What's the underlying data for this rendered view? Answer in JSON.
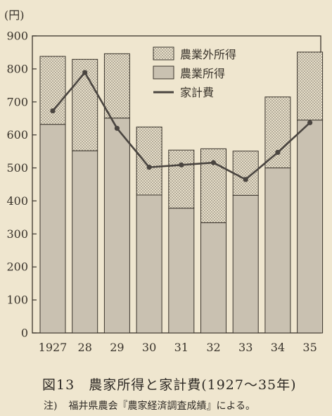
{
  "chart_data": {
    "type": "bar",
    "stacked": true,
    "unit_label": "(円)",
    "categories": [
      "1927",
      "28",
      "29",
      "30",
      "31",
      "32",
      "33",
      "34",
      "35"
    ],
    "series": [
      {
        "name": "農業所得",
        "kind": "bar",
        "pattern": "solid-gray",
        "values": [
          632,
          552,
          651,
          418,
          378,
          334,
          417,
          500,
          645
        ]
      },
      {
        "name": "農業外所得",
        "kind": "bar",
        "pattern": "dotted",
        "values": [
          206,
          277,
          195,
          206,
          176,
          224,
          134,
          215,
          206
        ]
      },
      {
        "name": "家計費",
        "kind": "line",
        "values": [
          673,
          789,
          620,
          502,
          509,
          516,
          465,
          547,
          637
        ]
      }
    ],
    "legend_order": [
      "農業外所得",
      "農業所得",
      "家計費"
    ],
    "yticks": [
      0,
      100,
      200,
      300,
      400,
      500,
      600,
      700,
      800,
      900
    ],
    "ylim": [
      0,
      900
    ],
    "grid": false,
    "legend_position": "top-right",
    "colors": {
      "background": "#efe6cf",
      "solid_bar": "#c9c1b1",
      "dotted_bar": "#e7dfca",
      "outline": "#3a342c",
      "line": "#4a4540"
    }
  },
  "caption": {
    "figure_label": "図13",
    "title": "農家所得と家計費(1927〜35年)"
  },
  "note": {
    "label": "注)",
    "text": "福井県農会『農家経済調査成績』による。"
  }
}
